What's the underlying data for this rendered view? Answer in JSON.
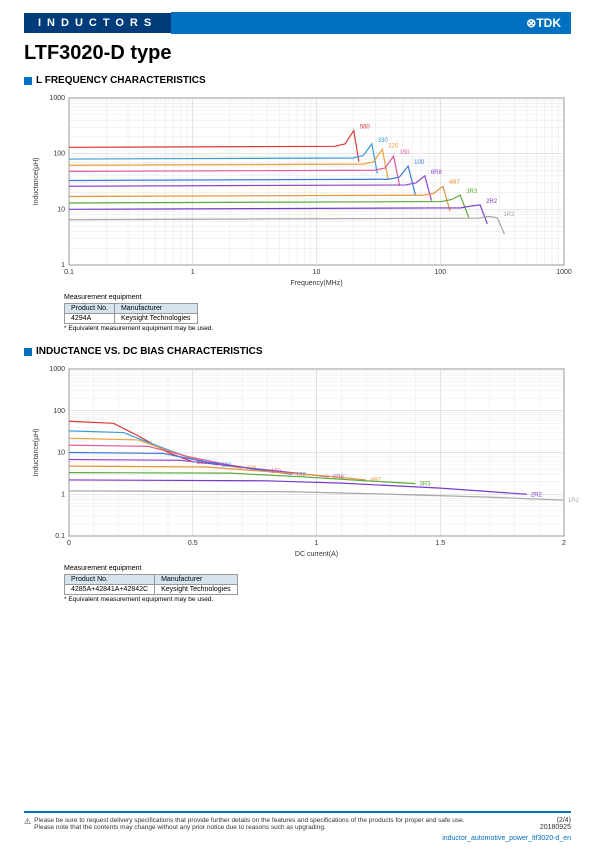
{
  "header": {
    "category": "INDUCTORS",
    "brand": "⊗TDK"
  },
  "title": "LTF3020-D type",
  "chart1": {
    "heading": "L FREQUENCY CHARACTERISTICS",
    "xlabel": "Frequency(MHz)",
    "ylabel": "Inductance(µH)",
    "xlog_min": 0.1,
    "xlog_max": 1000,
    "ylog_min": 1,
    "ylog_max": 1000,
    "xticks": [
      "0.1",
      "1",
      "10",
      "100",
      "1000"
    ],
    "yticks": [
      "1",
      "10",
      "100",
      "1000"
    ],
    "series": [
      {
        "label": "560",
        "color": "#d93838",
        "y0": 130,
        "peak_x": 20,
        "peak_y": 260,
        "drop_x": 22
      },
      {
        "label": "330",
        "color": "#3a9bd9",
        "y0": 80,
        "peak_x": 28,
        "peak_y": 150,
        "drop_x": 31
      },
      {
        "label": "220",
        "color": "#e8a23a",
        "y0": 62,
        "peak_x": 34,
        "peak_y": 120,
        "drop_x": 38
      },
      {
        "label": "150",
        "color": "#e05a9e",
        "y0": 48,
        "peak_x": 42,
        "peak_y": 90,
        "drop_x": 47
      },
      {
        "label": "100",
        "color": "#3a7bd9",
        "y0": 33,
        "peak_x": 55,
        "peak_y": 60,
        "drop_x": 63
      },
      {
        "label": "6R8",
        "color": "#9146c9",
        "y0": 26,
        "peak_x": 75,
        "peak_y": 40,
        "drop_x": 85
      },
      {
        "label": "4R7",
        "color": "#e8923a",
        "y0": 17,
        "peak_x": 105,
        "peak_y": 26,
        "drop_x": 120
      },
      {
        "label": "3R3",
        "color": "#5aa83a",
        "y0": 13,
        "peak_x": 145,
        "peak_y": 18,
        "drop_x": 170
      },
      {
        "label": "2R2",
        "color": "#7a3ac9",
        "y0": 10,
        "peak_x": 210,
        "peak_y": 12,
        "drop_x": 240
      },
      {
        "label": "1R2",
        "color": "#a6a6a6",
        "y0": 6.5,
        "peak_x": 290,
        "peak_y": 7,
        "drop_x": 330
      }
    ],
    "background": "#ffffff",
    "grid_color": "#cccccc",
    "axis_color": "#666666",
    "label_fontsize": 7,
    "tick_fontsize": 7
  },
  "chart2": {
    "heading": "INDUCTANCE VS. DC BIAS CHARACTERISTICS",
    "xlabel": "DC current(A)",
    "ylabel": "Inductance(µH)",
    "x_min": 0,
    "x_max": 2,
    "ylog_min": 0.1,
    "ylog_max": 1000,
    "xticks": [
      "0",
      "0.5",
      "1",
      "1.5",
      "2"
    ],
    "yticks": [
      "0.1",
      "1",
      "10",
      "100",
      "1000"
    ],
    "series": [
      {
        "label": "560",
        "color": "#d93838",
        "pts": [
          [
            0,
            56
          ],
          [
            0.18,
            50
          ],
          [
            0.28,
            25
          ],
          [
            0.4,
            10
          ],
          [
            0.5,
            6
          ]
        ]
      },
      {
        "label": "330",
        "color": "#3a9bd9",
        "pts": [
          [
            0,
            33
          ],
          [
            0.22,
            30
          ],
          [
            0.35,
            15
          ],
          [
            0.5,
            7
          ],
          [
            0.6,
            5
          ]
        ]
      },
      {
        "label": "220",
        "color": "#e8a23a",
        "pts": [
          [
            0,
            22
          ],
          [
            0.28,
            20
          ],
          [
            0.4,
            11
          ],
          [
            0.55,
            6
          ],
          [
            0.7,
            4.2
          ]
        ]
      },
      {
        "label": "150",
        "color": "#e05a9e",
        "pts": [
          [
            0,
            15
          ],
          [
            0.32,
            14
          ],
          [
            0.48,
            8
          ],
          [
            0.65,
            5
          ],
          [
            0.8,
            3.6
          ]
        ]
      },
      {
        "label": "100",
        "color": "#3a7bd9",
        "pts": [
          [
            0,
            10
          ],
          [
            0.38,
            9.5
          ],
          [
            0.55,
            6
          ],
          [
            0.75,
            4
          ],
          [
            0.9,
            3
          ]
        ]
      },
      {
        "label": "6R8",
        "color": "#9146c9",
        "pts": [
          [
            0,
            6.8
          ],
          [
            0.45,
            6.5
          ],
          [
            0.65,
            4.8
          ],
          [
            0.9,
            3.3
          ],
          [
            1.05,
            2.6
          ]
        ]
      },
      {
        "label": "4R7",
        "color": "#e8923a",
        "pts": [
          [
            0,
            4.7
          ],
          [
            0.55,
            4.5
          ],
          [
            0.8,
            3.5
          ],
          [
            1.05,
            2.7
          ],
          [
            1.2,
            2.2
          ]
        ]
      },
      {
        "label": "3R3",
        "color": "#5aa83a",
        "pts": [
          [
            0,
            3.3
          ],
          [
            0.65,
            3.2
          ],
          [
            0.95,
            2.6
          ],
          [
            1.2,
            2.1
          ],
          [
            1.4,
            1.8
          ]
        ]
      },
      {
        "label": "2R2",
        "color": "#7a3ac9",
        "pts": [
          [
            0,
            2.2
          ],
          [
            0.8,
            2.1
          ],
          [
            1.1,
            1.85
          ],
          [
            1.5,
            1.4
          ],
          [
            1.85,
            1.0
          ]
        ]
      },
      {
        "label": "1R2",
        "color": "#a6a6a6",
        "pts": [
          [
            0,
            1.2
          ],
          [
            0.9,
            1.15
          ],
          [
            1.3,
            1.0
          ],
          [
            1.7,
            0.85
          ],
          [
            2.0,
            0.72
          ]
        ]
      }
    ],
    "background": "#ffffff",
    "grid_color": "#cccccc",
    "axis_color": "#666666",
    "label_fontsize": 7,
    "tick_fontsize": 7
  },
  "meas_table": {
    "caption": "Measurement equipment",
    "headers": [
      "Product No.",
      "Manufacturer"
    ],
    "row1": [
      "4294A",
      "Keysight Technologies"
    ],
    "row2": [
      "4285A+42841A+42842C",
      "Keysight Technologies"
    ],
    "note": "* Equivalent measurement equipment may be used."
  },
  "footer": {
    "warn1": "Please be sure to request delivery specifications that provide further details on the features and specifications of the products for proper and safe use.",
    "warn2": "Please note that the contents may change without any prior notice due to reasons such as upgrading.",
    "page": "(2/4)",
    "date": "20180925",
    "doc_id": "inductor_automotive_power_ltf3020-d_en"
  }
}
